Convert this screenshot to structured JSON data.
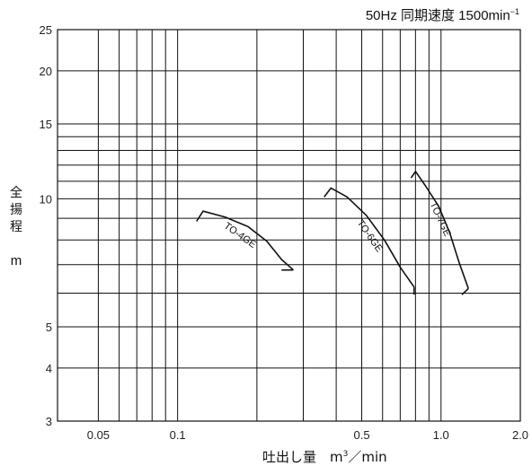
{
  "title": {
    "text": "50Hz 同期速度 1500min",
    "sup": "−1"
  },
  "ylabel": {
    "chars": [
      "全",
      "揚",
      "程"
    ],
    "unit": "m"
  },
  "xlabel": {
    "pre": "吐出し量　m",
    "sup": "3",
    "post": "／min"
  },
  "chart_data": {
    "type": "line",
    "title": "50Hz 同期速度 1500min⁻¹",
    "xlabel": "吐出し量 m³／min",
    "ylabel": "全揚程 m",
    "xscale": "log",
    "yscale": "log",
    "xlim": [
      0.035,
      2.0
    ],
    "ylim": [
      3,
      25
    ],
    "grid": true,
    "x_gridlines": [
      0.05,
      0.06,
      0.07,
      0.08,
      0.09,
      0.1,
      0.2,
      0.3,
      0.4,
      0.5,
      0.6,
      0.7,
      0.8,
      0.9,
      1.0,
      2.0
    ],
    "y_gridlines": [
      3,
      4,
      5,
      6,
      7,
      8,
      9,
      10,
      11,
      12,
      13,
      14,
      15,
      20,
      25
    ],
    "x_tick_labels": [
      {
        "v": 0.05,
        "t": "0.05"
      },
      {
        "v": 0.1,
        "t": "0.1"
      },
      {
        "v": 0.5,
        "t": "0.5"
      },
      {
        "v": 1.0,
        "t": "1.0"
      },
      {
        "v": 2.0,
        "t": "2.0"
      }
    ],
    "y_tick_labels": [
      {
        "v": 3,
        "t": "3"
      },
      {
        "v": 4,
        "t": "4"
      },
      {
        "v": 5,
        "t": "5"
      },
      {
        "v": 10,
        "t": "10"
      },
      {
        "v": 15,
        "t": "15"
      },
      {
        "v": 20,
        "t": "20"
      },
      {
        "v": 25,
        "t": "25"
      }
    ],
    "series": [
      {
        "name": "TO-4GE",
        "points": [
          [
            0.125,
            9.35
          ],
          [
            0.152,
            9.05
          ],
          [
            0.185,
            8.6
          ],
          [
            0.218,
            7.95
          ],
          [
            0.248,
            7.2
          ],
          [
            0.275,
            6.8
          ]
        ],
        "start_tick": [
          [
            0.118,
            8.85
          ],
          [
            0.125,
            9.35
          ]
        ],
        "end_tick": [
          [
            0.248,
            6.8
          ],
          [
            0.275,
            6.8
          ]
        ],
        "label_at": [
          0.17,
          8.1
        ],
        "label_angle": 35
      },
      {
        "name": "TO-6GE",
        "points": [
          [
            0.382,
            10.6
          ],
          [
            0.44,
            10.1
          ],
          [
            0.52,
            9.15
          ],
          [
            0.61,
            8.0
          ],
          [
            0.7,
            6.9
          ],
          [
            0.79,
            6.2
          ]
        ],
        "start_tick": [
          [
            0.36,
            10.1
          ],
          [
            0.382,
            10.6
          ]
        ],
        "end_tick": [
          [
            0.79,
            5.95
          ],
          [
            0.79,
            6.2
          ]
        ],
        "label_at": [
          0.525,
          8.1
        ],
        "label_angle": 55
      },
      {
        "name": "TO-7GE",
        "points": [
          [
            0.8,
            11.6
          ],
          [
            0.875,
            10.7
          ],
          [
            0.98,
            9.6
          ],
          [
            1.08,
            8.3
          ],
          [
            1.17,
            7.1
          ],
          [
            1.27,
            6.15
          ]
        ],
        "start_tick": [
          [
            0.77,
            11.2
          ],
          [
            0.8,
            11.6
          ]
        ],
        "end_tick": [
          [
            1.2,
            5.95
          ],
          [
            1.27,
            6.15
          ]
        ],
        "label_at": [
          0.97,
          8.9
        ],
        "label_angle": 65
      }
    ]
  }
}
